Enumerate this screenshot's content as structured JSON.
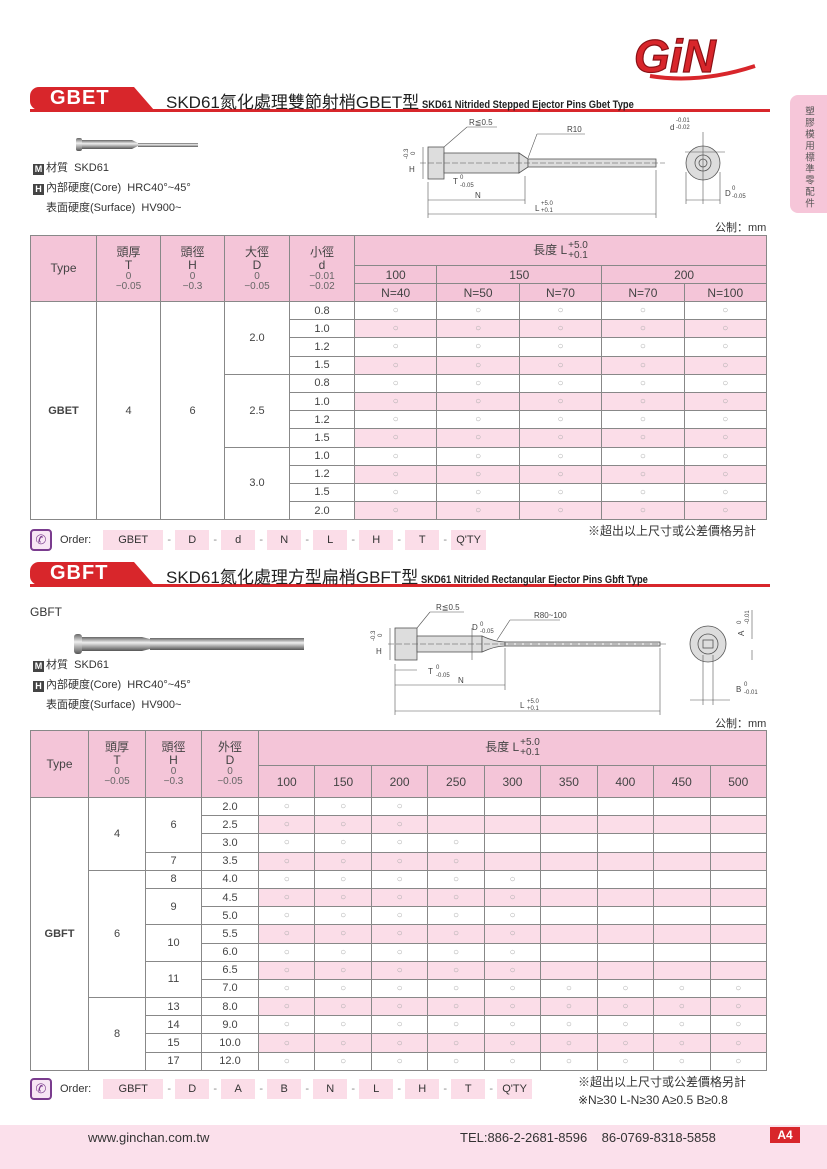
{
  "logo": "GiN",
  "side_tab": "塑膠模用標準零配件",
  "colors": {
    "brand_red": "#d8262b",
    "header_pink": "#f4c5d8",
    "row_pink": "#fbdde8"
  },
  "gbet": {
    "badge": "GBET",
    "title_cn": "SKD61氮化處理雙節射梢GBET型",
    "title_en": "SKD61 Nitrided Stepped Ejector Pins Gbet Type",
    "material_icon": "M",
    "material_label": "材質",
    "material": "SKD61",
    "hardness_icon": "H",
    "core_label": "內部硬度(Core)",
    "core": "HRC40°~45°",
    "surface_label": "表面硬度(Surface)",
    "surface": "HV900~",
    "diagram": {
      "r_head": "R≦0.5",
      "r_step": "R10",
      "h": "H",
      "h_tol": "-0.3",
      "h_tol0": "0",
      "t": "T",
      "t_tol0": "0",
      "t_tol": "-0.05",
      "n": "N",
      "l": "L",
      "l_up": "+5.0",
      "l_lo": "+0.1",
      "d": "d",
      "d_up": "-0.01",
      "d_lo": "-0.02",
      "D": "D",
      "D_up": "0",
      "D_lo": "-0.05"
    },
    "unit": "公制：mm",
    "table": {
      "fixed_headers": [
        {
          "cn": "",
          "sym": "Type",
          "up": "",
          "lo": ""
        },
        {
          "cn": "頭厚",
          "sym": "T",
          "up": "0",
          "lo": "−0.05"
        },
        {
          "cn": "頭徑",
          "sym": "H",
          "up": "0",
          "lo": "−0.3"
        },
        {
          "cn": "大徑",
          "sym": "D",
          "up": "0",
          "lo": "−0.05"
        },
        {
          "cn": "小徑",
          "sym": "d",
          "up": "−0.01",
          "lo": "−0.02"
        }
      ],
      "length_label": "長度 L",
      "length_up": "+5.0",
      "length_lo": "+0.1",
      "lengths": [
        {
          "L": "100",
          "N": [
            "N=40"
          ]
        },
        {
          "L": "150",
          "N": [
            "N=50",
            "N=70"
          ]
        },
        {
          "L": "200",
          "N": [
            "N=70",
            "N=100"
          ]
        }
      ],
      "type": "GBET",
      "T": "4",
      "H": "6",
      "d_groups": [
        {
          "D": "2.0",
          "d": [
            "0.8",
            "1.0",
            "1.2",
            "1.5"
          ]
        },
        {
          "D": "2.5",
          "d": [
            "0.8",
            "1.0",
            "1.2",
            "1.5"
          ]
        },
        {
          "D": "3.0",
          "d": [
            "1.0",
            "1.2",
            "1.5",
            "2.0"
          ]
        }
      ],
      "available_per_row": 5,
      "mark": "○"
    },
    "order": {
      "label": "Order:",
      "fields": [
        "GBET",
        "D",
        "d",
        "N",
        "L",
        "H",
        "T",
        "Q'TY"
      ],
      "sep": "-",
      "note": "※超出以上尺寸或公差價格另計"
    }
  },
  "gbft": {
    "badge": "GBFT",
    "title_cn": "SKD61氮化處理方型扁梢GBFT型",
    "title_en": "SKD61 Nitrided Rectangular Ejector Pins Gbft Type",
    "caption": "GBFT",
    "material_icon": "M",
    "material_label": "材質",
    "material": "SKD61",
    "hardness_icon": "H",
    "core_label": "內部硬度(Core)",
    "core": "HRC40°~45°",
    "surface_label": "表面硬度(Surface)",
    "surface": "HV900~",
    "diagram": {
      "r_head": "R≦0.5",
      "r_step": "R80~100",
      "h": "H",
      "h_tol0": "0",
      "h_tol": "-0.3",
      "D": "D",
      "D_up": "0",
      "D_lo": "-0.05",
      "t": "T",
      "t_tol0": "0",
      "t_tol": "-0.05",
      "n": "N",
      "l": "L",
      "l_up": "+5.0",
      "l_lo": "+0.1",
      "a": "A",
      "a_up": "0",
      "a_lo": "-0.01",
      "b": "B",
      "b_up": "0",
      "b_lo": "-0.01"
    },
    "unit": "公制：mm",
    "table": {
      "fixed_headers": [
        {
          "cn": "",
          "sym": "Type",
          "up": "",
          "lo": ""
        },
        {
          "cn": "頭厚",
          "sym": "T",
          "up": "0",
          "lo": "−0.05"
        },
        {
          "cn": "頭徑",
          "sym": "H",
          "up": "0",
          "lo": "−0.3"
        },
        {
          "cn": "外徑",
          "sym": "D",
          "up": "0",
          "lo": "−0.05"
        }
      ],
      "length_label": "長度 L",
      "length_up": "+5.0",
      "length_lo": "+0.1",
      "lengths": [
        "100",
        "150",
        "200",
        "250",
        "300",
        "350",
        "400",
        "450",
        "500"
      ],
      "type": "GBFT",
      "t_groups": [
        {
          "T": "4",
          "h_groups": [
            {
              "H": "6",
              "rows": [
                {
                  "D": "2.0",
                  "avail": 3
                },
                {
                  "D": "2.5",
                  "avail": 3
                },
                {
                  "D": "3.0",
                  "avail": 4
                }
              ]
            },
            {
              "H": "7",
              "rows": [
                {
                  "D": "3.5",
                  "avail": 4
                }
              ]
            }
          ]
        },
        {
          "T": "6",
          "h_groups": [
            {
              "H": "8",
              "rows": [
                {
                  "D": "4.0",
                  "avail": 5
                }
              ]
            },
            {
              "H": "9",
              "rows": [
                {
                  "D": "4.5",
                  "avail": 5
                },
                {
                  "D": "5.0",
                  "avail": 5
                }
              ]
            },
            {
              "H": "10",
              "rows": [
                {
                  "D": "5.5",
                  "avail": 5
                },
                {
                  "D": "6.0",
                  "avail": 5
                }
              ]
            },
            {
              "H": "11",
              "rows": [
                {
                  "D": "6.5",
                  "avail": 5
                },
                {
                  "D": "7.0",
                  "avail": 9
                }
              ]
            }
          ]
        },
        {
          "T": "8",
          "h_groups": [
            {
              "H": "13",
              "rows": [
                {
                  "D": "8.0",
                  "avail": 9
                }
              ]
            },
            {
              "H": "14",
              "rows": [
                {
                  "D": "9.0",
                  "avail": 9
                }
              ]
            },
            {
              "H": "15",
              "rows": [
                {
                  "D": "10.0",
                  "avail": 9
                }
              ]
            },
            {
              "H": "17",
              "rows": [
                {
                  "D": "12.0",
                  "avail": 9
                }
              ]
            }
          ]
        }
      ],
      "mark": "○"
    },
    "order": {
      "label": "Order:",
      "fields": [
        "GBFT",
        "D",
        "A",
        "B",
        "N",
        "L",
        "H",
        "T",
        "Q'TY"
      ],
      "sep": "-",
      "note": "※超出以上尺寸或公差價格另計",
      "note2": "※N≥30   L-N≥30   A≥0.5   B≥0.8"
    }
  },
  "footer": {
    "website": "www.ginchan.com.tw",
    "tel": "TEL:886-2-2681-8596    86-0769-8318-5858",
    "page": "A4"
  }
}
